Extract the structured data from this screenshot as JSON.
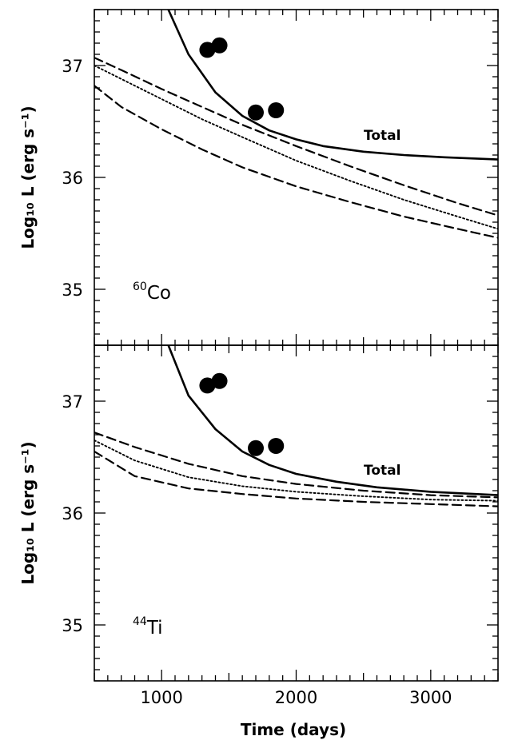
{
  "chart_data": [
    {
      "type": "line",
      "panel": "top",
      "ylabel": "Log₁₀ L (erg s⁻¹)",
      "isotope": {
        "mass": "60",
        "symbol": "Co"
      },
      "xlim": [
        500,
        3500
      ],
      "ylim": [
        34.5,
        37.5
      ],
      "xticks": [
        1000,
        2000,
        3000
      ],
      "yticks": [
        35,
        36,
        37
      ],
      "annotation": "Total",
      "series": [
        {
          "style": "solid",
          "x": [
            1050,
            1200,
            1400,
            1600,
            1800,
            2000,
            2200,
            2500,
            2800,
            3100,
            3500
          ],
          "y": [
            37.5,
            37.1,
            36.76,
            36.55,
            36.42,
            36.34,
            36.28,
            36.23,
            36.2,
            36.18,
            36.16
          ]
        },
        {
          "style": "dashed",
          "x": [
            500,
            700,
            1000,
            1300,
            1600,
            2000,
            2400,
            2800,
            3200,
            3500
          ],
          "y": [
            37.07,
            36.96,
            36.79,
            36.63,
            36.47,
            36.28,
            36.1,
            35.93,
            35.77,
            35.66
          ]
        },
        {
          "style": "dotted",
          "x": [
            500,
            700,
            1000,
            1300,
            1600,
            2000,
            2400,
            2800,
            3200,
            3500
          ],
          "y": [
            37.0,
            36.88,
            36.7,
            36.52,
            36.36,
            36.15,
            35.97,
            35.8,
            35.65,
            35.54
          ]
        },
        {
          "style": "dashed",
          "x": [
            500,
            700,
            1000,
            1300,
            1600,
            2000,
            2400,
            2800,
            3200,
            3500
          ],
          "y": [
            36.82,
            36.63,
            36.43,
            36.25,
            36.09,
            35.92,
            35.78,
            35.65,
            35.54,
            35.46
          ]
        }
      ],
      "points": {
        "x": [
          1340,
          1430,
          1700,
          1850
        ],
        "y": [
          37.14,
          37.18,
          36.58,
          36.6
        ]
      }
    },
    {
      "type": "line",
      "panel": "bottom",
      "ylabel": "Log₁₀ L (erg s⁻¹)",
      "xlabel": "Time (days)",
      "isotope": {
        "mass": "44",
        "symbol": "Ti"
      },
      "xlim": [
        500,
        3500
      ],
      "ylim": [
        34.5,
        37.5
      ],
      "xticks": [
        1000,
        2000,
        3000
      ],
      "yticks": [
        35,
        36,
        37
      ],
      "annotation": "Total",
      "series": [
        {
          "style": "solid",
          "x": [
            1050,
            1200,
            1400,
            1600,
            1800,
            2000,
            2300,
            2600,
            3000,
            3500
          ],
          "y": [
            37.5,
            37.05,
            36.75,
            36.55,
            36.43,
            36.35,
            36.28,
            36.23,
            36.19,
            36.16
          ]
        },
        {
          "style": "dashed",
          "x": [
            500,
            800,
            1200,
            1600,
            2000,
            2500,
            3000,
            3500
          ],
          "y": [
            36.72,
            36.59,
            36.44,
            36.33,
            36.26,
            36.2,
            36.16,
            36.14
          ]
        },
        {
          "style": "dotted",
          "x": [
            500,
            800,
            1200,
            1600,
            2000,
            2500,
            3000,
            3500
          ],
          "y": [
            36.65,
            36.47,
            36.32,
            36.24,
            36.19,
            36.15,
            36.12,
            36.11
          ]
        },
        {
          "style": "dashed",
          "x": [
            500,
            800,
            1200,
            1600,
            2000,
            2500,
            3000,
            3500
          ],
          "y": [
            36.55,
            36.33,
            36.22,
            36.17,
            36.13,
            36.1,
            36.08,
            36.06
          ]
        }
      ],
      "points": {
        "x": [
          1340,
          1430,
          1700,
          1850
        ],
        "y": [
          37.14,
          37.18,
          36.58,
          36.6
        ]
      }
    }
  ]
}
